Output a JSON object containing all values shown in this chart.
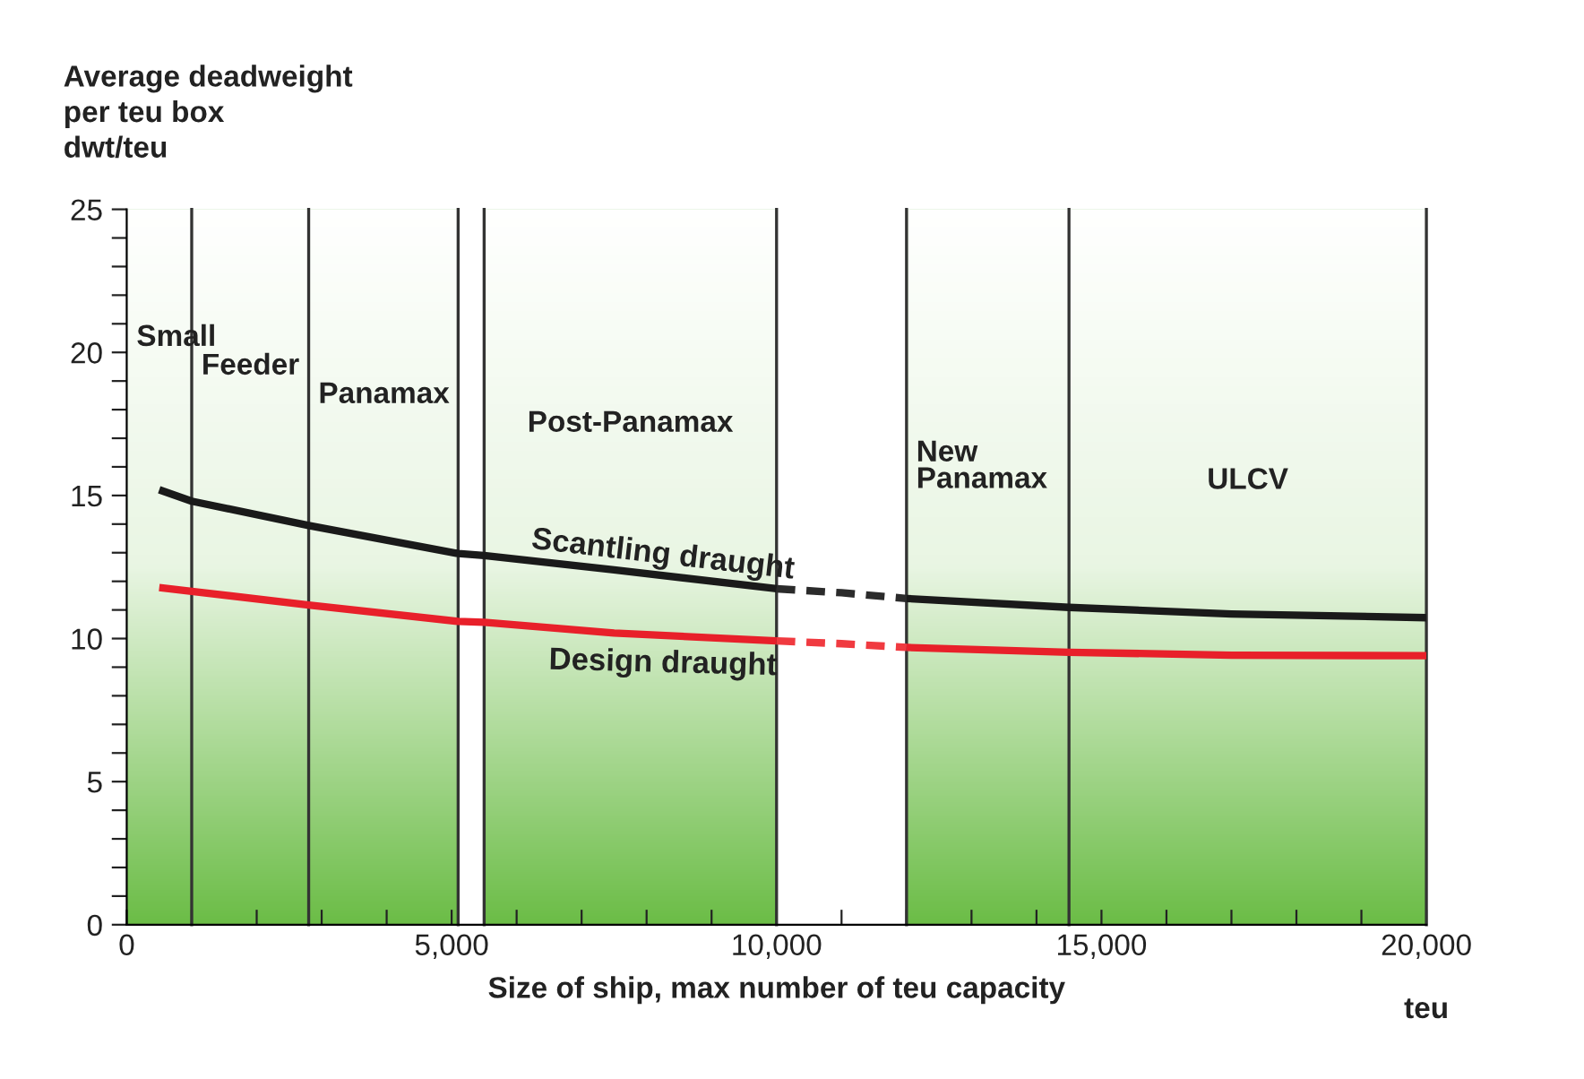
{
  "chart_data": {
    "type": "line",
    "ylabel": "Average deadweight\nper teu box\ndwt/teu",
    "xlabel": "Size of ship, max number of teu capacity",
    "xlim": [
      0,
      20000
    ],
    "ylim": [
      0,
      25
    ],
    "xticks": [
      {
        "value": 0,
        "label": "0"
      },
      {
        "value": 1000,
        "label": null
      },
      {
        "value": 2000,
        "label": null
      },
      {
        "value": 3000,
        "label": null
      },
      {
        "value": 4000,
        "label": null
      },
      {
        "value": 5000,
        "label": "5,000"
      },
      {
        "value": 6000,
        "label": null
      },
      {
        "value": 7000,
        "label": null
      },
      {
        "value": 8000,
        "label": null
      },
      {
        "value": 9000,
        "label": null
      },
      {
        "value": 10000,
        "label": "10,000"
      },
      {
        "value": 11000,
        "label": null
      },
      {
        "value": 12000,
        "label": null
      },
      {
        "value": 13000,
        "label": null
      },
      {
        "value": 14000,
        "label": null
      },
      {
        "value": 15000,
        "label": "15,000"
      },
      {
        "value": 16000,
        "label": null
      },
      {
        "value": 17000,
        "label": null
      },
      {
        "value": 18000,
        "label": null
      },
      {
        "value": 19000,
        "label": null
      },
      {
        "value": 20000,
        "label": "20,000"
      }
    ],
    "yticks": [
      0,
      {
        "value": 1,
        "label": null
      },
      {
        "value": 2,
        "label": null
      },
      {
        "value": 3,
        "label": null
      },
      {
        "value": 4,
        "label": null
      },
      5,
      {
        "value": 6,
        "label": null
      },
      {
        "value": 7,
        "label": null
      },
      {
        "value": 8,
        "label": null
      },
      {
        "value": 9,
        "label": null
      },
      10,
      {
        "value": 11,
        "label": null
      },
      {
        "value": 12,
        "label": null
      },
      {
        "value": 13,
        "label": null
      },
      {
        "value": 14,
        "label": null
      },
      15,
      {
        "value": 16,
        "label": null
      },
      {
        "value": 17,
        "label": null
      },
      {
        "value": 18,
        "label": null
      },
      {
        "value": 19,
        "label": null
      },
      20,
      {
        "value": 21,
        "label": null
      },
      {
        "value": 22,
        "label": null
      },
      {
        "value": 23,
        "label": null
      },
      {
        "value": 24,
        "label": null
      },
      25
    ],
    "grid": false,
    "legend": false,
    "marker": "none",
    "bands": [
      {
        "axis": "x",
        "from": 0,
        "to": 5100,
        "color": "#6cbd47"
      },
      {
        "axis": "x",
        "from": 5500,
        "to": 10000,
        "color": "#6cbd47"
      },
      {
        "axis": "x",
        "from": 12000,
        "to": 20000,
        "color": "#6cbd47"
      }
    ],
    "ref_lines": [
      {
        "axis": "x",
        "value": 1000,
        "color": "#333333"
      },
      {
        "axis": "x",
        "value": 2800,
        "color": "#333333"
      },
      {
        "axis": "x",
        "value": 5100,
        "color": "#333333"
      },
      {
        "axis": "x",
        "value": 5500,
        "color": "#333333"
      },
      {
        "axis": "x",
        "value": 10000,
        "color": "#333333"
      },
      {
        "axis": "x",
        "value": 12000,
        "color": "#333333"
      },
      {
        "axis": "x",
        "value": 14500,
        "color": "#333333"
      }
    ],
    "series": [
      {
        "name": "Scantling draught",
        "color": "#1a1a1a",
        "line_style": "solid",
        "x": [
          500,
          1000,
          2800,
          5100,
          5500,
          7500,
          10000,
          null,
          12000,
          14500,
          17000,
          20000
        ],
        "values": [
          15.2,
          14.8,
          13.95,
          12.97,
          12.9,
          12.4,
          11.74,
          null,
          11.4,
          11.09,
          10.86,
          10.73
        ]
      },
      {
        "color": "#2b2b2b",
        "line_style": "dashed",
        "x": [
          10000,
          11000,
          12000
        ],
        "values": [
          11.74,
          11.6,
          11.4
        ]
      },
      {
        "name": "Design draught",
        "color": "#e8202a",
        "line_style": "solid",
        "x": [
          500,
          1000,
          2800,
          5100,
          5500,
          7500,
          10000,
          null,
          12000,
          14500,
          17000,
          20000
        ],
        "values": [
          11.78,
          11.65,
          11.17,
          10.6,
          10.57,
          10.19,
          9.92,
          null,
          9.69,
          9.52,
          9.42,
          9.4
        ]
      },
      {
        "color": "#f03a40",
        "line_style": "dashed",
        "x": [
          10000,
          11000,
          12000
        ],
        "values": [
          9.92,
          9.82,
          9.69
        ]
      }
    ],
    "annotations": [
      "Small",
      "Feeder",
      "Panamax",
      "Post-Panamax",
      "New\nPanamax",
      "ULCV",
      "teu"
    ]
  }
}
